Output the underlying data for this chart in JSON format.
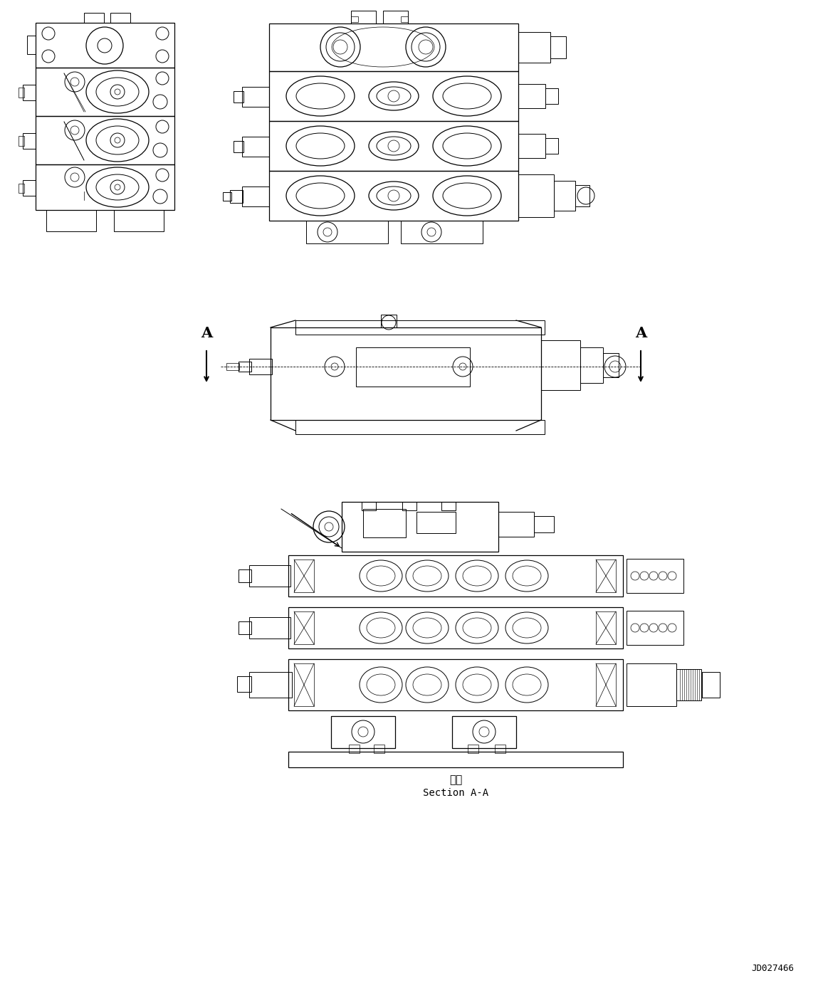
{
  "background_color": "#ffffff",
  "line_color": "#000000",
  "text_color": "#000000",
  "section_label_top": "断面",
  "section_label_bottom": "Section A-A",
  "doc_number": "JD027466",
  "fig_width": 11.63,
  "fig_height": 13.95,
  "dpi": 100,
  "lw_main": 0.9,
  "lw_med": 0.7,
  "lw_thin": 0.5
}
